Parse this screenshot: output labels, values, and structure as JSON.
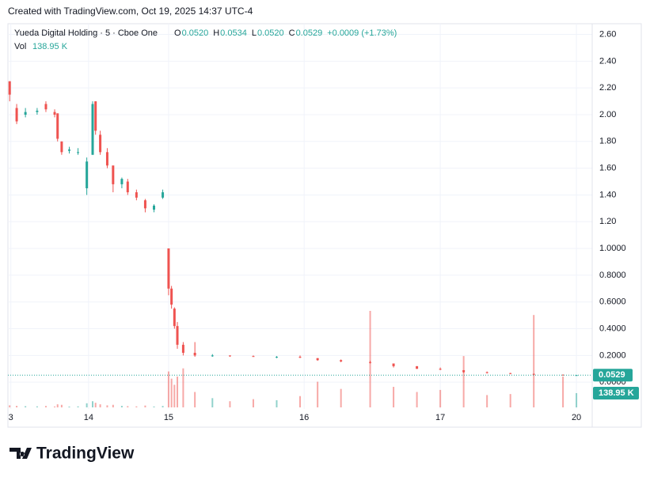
{
  "header": {
    "caption": "Created with TradingView.com, Oct 19, 2025 14:37 UTC-4",
    "symbol": "Yueda Digital Holding · 5 · Cboe One",
    "ohlc": [
      {
        "label": "O",
        "value": "0.0520"
      },
      {
        "label": "H",
        "value": "0.0534"
      },
      {
        "label": "L",
        "value": "0.0520"
      },
      {
        "label": "C",
        "value": "0.0529"
      }
    ],
    "change": "+0.0009 (+1.73%)",
    "volume_label": "Vol",
    "volume_value": "138.95 K"
  },
  "chart_data": {
    "type": "candlestick",
    "x": [
      0.3,
      1.5,
      3,
      5,
      6.5,
      8,
      8.5,
      9.2,
      10.5,
      12,
      13.5,
      14.5,
      15,
      15.8,
      17,
      18,
      19.5,
      20.5,
      22,
      23.5,
      25,
      26.5,
      27.5,
      28,
      28.5,
      29,
      30,
      32,
      35,
      38,
      42,
      46,
      50,
      53,
      57,
      62,
      66,
      70,
      74,
      78,
      82,
      86,
      90,
      95,
      97.3
    ],
    "open": [
      2.25,
      2.05,
      2.0,
      2.02,
      2.08,
      2.02,
      2.01,
      1.8,
      1.73,
      1.72,
      1.45,
      1.7,
      2.1,
      1.85,
      1.72,
      1.62,
      1.48,
      1.5,
      1.42,
      1.36,
      1.29,
      1.38,
      1.0,
      0.7,
      0.55,
      0.42,
      0.28,
      0.22,
      0.2,
      0.2,
      0.195,
      0.19,
      0.19,
      0.18,
      0.165,
      0.15,
      0.14,
      0.12,
      0.1,
      0.09,
      0.075,
      0.068,
      0.062,
      0.056,
      0.052
    ],
    "high": [
      2.25,
      2.08,
      2.05,
      2.05,
      2.1,
      2.04,
      2.01,
      1.8,
      1.76,
      1.75,
      1.68,
      2.1,
      2.1,
      1.88,
      1.75,
      1.62,
      1.53,
      1.52,
      1.44,
      1.37,
      1.33,
      1.44,
      1.0,
      0.72,
      0.56,
      0.45,
      0.3,
      0.3,
      0.21,
      0.2,
      0.2,
      0.195,
      0.2,
      0.18,
      0.17,
      0.16,
      0.14,
      0.12,
      0.11,
      0.09,
      0.08,
      0.07,
      0.065,
      0.058,
      0.0534
    ],
    "low": [
      2.1,
      1.93,
      1.98,
      2.0,
      2.02,
      1.98,
      1.8,
      1.7,
      1.71,
      1.7,
      1.4,
      1.7,
      1.85,
      1.7,
      1.6,
      1.42,
      1.45,
      1.4,
      1.36,
      1.27,
      1.27,
      1.37,
      0.65,
      0.55,
      0.4,
      0.25,
      0.2,
      0.19,
      0.19,
      0.19,
      0.19,
      0.18,
      0.18,
      0.16,
      0.15,
      0.14,
      0.11,
      0.1,
      0.09,
      0.07,
      0.065,
      0.06,
      0.055,
      0.052,
      0.052
    ],
    "close": [
      2.15,
      1.95,
      2.02,
      2.03,
      2.04,
      2.0,
      1.82,
      1.72,
      1.74,
      1.72,
      1.65,
      2.08,
      1.88,
      1.72,
      1.62,
      1.48,
      1.52,
      1.42,
      1.38,
      1.3,
      1.32,
      1.42,
      0.7,
      0.58,
      0.42,
      0.28,
      0.22,
      0.2,
      0.2,
      0.195,
      0.19,
      0.19,
      0.185,
      0.165,
      0.155,
      0.145,
      0.12,
      0.1,
      0.095,
      0.075,
      0.07,
      0.062,
      0.058,
      0.054,
      0.0529
    ],
    "volume": [
      20000,
      15000,
      12000,
      10000,
      14000,
      9000,
      30000,
      25000,
      8000,
      10000,
      40000,
      60000,
      45000,
      30000,
      20000,
      25000,
      15000,
      12000,
      10000,
      18000,
      9000,
      14000,
      350000,
      280000,
      220000,
      300000,
      380000,
      150000,
      90000,
      60000,
      80000,
      70000,
      110000,
      250000,
      180000,
      940000,
      200000,
      150000,
      170000,
      500000,
      120000,
      130000,
      900000,
      300000,
      138950
    ],
    "up_color": "#26a69a",
    "down_color": "#ef5350",
    "xlim": [
      0,
      100
    ],
    "ylim": [
      -0.2,
      2.68
    ],
    "xticks": [
      {
        "value": 0.5,
        "label": "3"
      },
      {
        "value": 13.8,
        "label": "14"
      },
      {
        "value": 27.5,
        "label": "15"
      },
      {
        "value": 50.7,
        "label": "16"
      },
      {
        "value": 74,
        "label": "17"
      },
      {
        "value": 97.3,
        "label": "20"
      }
    ],
    "yticks": [
      {
        "value": 2.6,
        "label": "2.60"
      },
      {
        "value": 2.4,
        "label": "2.40"
      },
      {
        "value": 2.2,
        "label": "2.20"
      },
      {
        "value": 2.0,
        "label": "2.00"
      },
      {
        "value": 1.8,
        "label": "1.80"
      },
      {
        "value": 1.6,
        "label": "1.60"
      },
      {
        "value": 1.4,
        "label": "1.40"
      },
      {
        "value": 1.2,
        "label": "1.20"
      },
      {
        "value": 1.0,
        "label": "1.0000"
      },
      {
        "value": 0.8,
        "label": "0.8000"
      },
      {
        "value": 0.6,
        "label": "0.6000"
      },
      {
        "value": 0.4,
        "label": "0.4000"
      },
      {
        "value": 0.2,
        "label": "0.2000"
      },
      {
        "value": 0,
        "label": "0.0000"
      }
    ],
    "last_price_label": "0.0529",
    "last_volume_label": "138.95 K",
    "grid": true
  },
  "footer": {
    "logo": "TradingView"
  }
}
